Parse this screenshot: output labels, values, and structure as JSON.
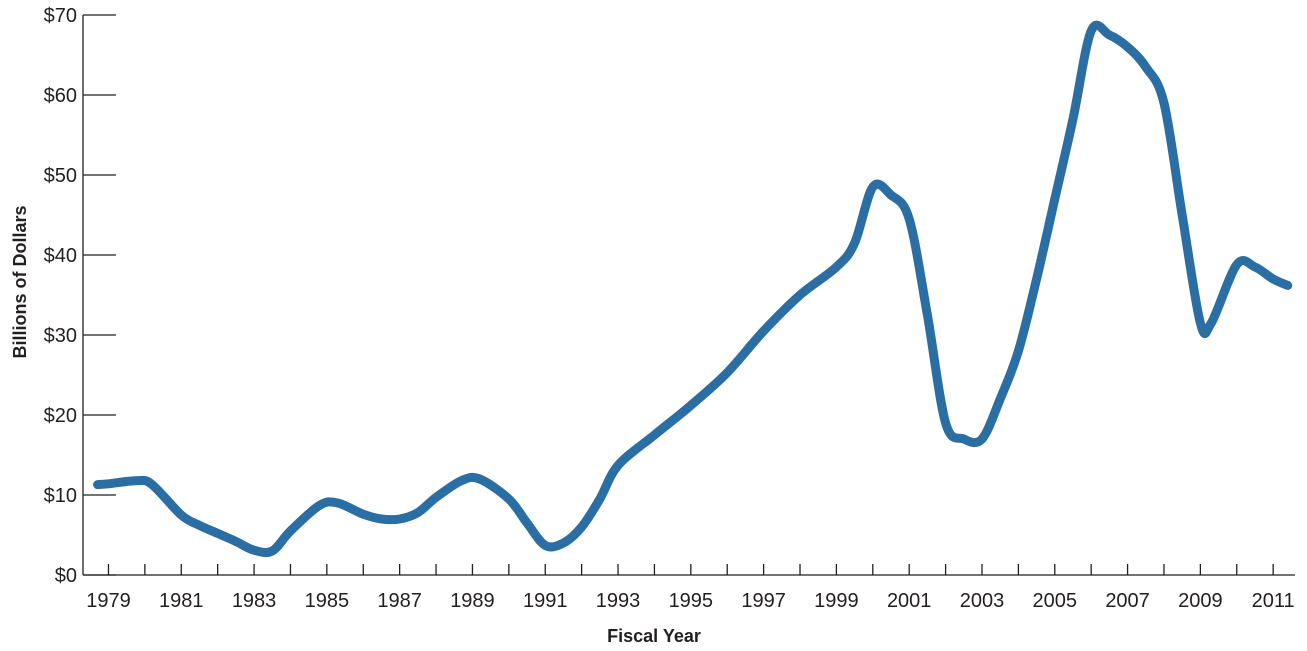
{
  "chart_data": {
    "type": "line",
    "title": "",
    "xlabel": "Fiscal Year",
    "ylabel": "Billions of Dollars",
    "xlim": [
      1978.3,
      2011.6
    ],
    "ylim": [
      0,
      70
    ],
    "y_ticks": [
      0,
      10,
      20,
      30,
      40,
      50,
      60,
      70
    ],
    "y_tick_labels": [
      "$0",
      "$10",
      "$20",
      "$30",
      "$40",
      "$50",
      "$60",
      "$70"
    ],
    "x_ticks": [
      1979,
      1981,
      1983,
      1985,
      1987,
      1989,
      1991,
      1993,
      1995,
      1997,
      1999,
      2001,
      2003,
      2005,
      2007,
      2009,
      2011
    ],
    "x_tick_labels": [
      "1979",
      "1981",
      "1983",
      "1985",
      "1987",
      "1989",
      "1991",
      "1993",
      "1995",
      "1997",
      "1999",
      "2001",
      "2003",
      "2005",
      "2007",
      "2009",
      "2011"
    ],
    "grid": false,
    "legend": "none",
    "line_color": "#2b6ea3",
    "series": [
      {
        "x": [
          1978.7,
          1979,
          1979.8,
          1980.2,
          1981,
          1981.5,
          1982,
          1982.5,
          1983,
          1983.5,
          1984,
          1984.8,
          1985.3,
          1986,
          1986.5,
          1987,
          1987.5,
          1988,
          1988.7,
          1989.2,
          1990,
          1990.5,
          1991,
          1991.5,
          1992,
          1992.5,
          1993,
          1994,
          1995,
          1996,
          1997,
          1998,
          1999,
          1999.5,
          2000,
          2000.5,
          2001,
          2001.5,
          2002,
          2002.5,
          2003,
          2003.5,
          2004,
          2004.5,
          2005,
          2005.5,
          2006,
          2006.5,
          2007,
          2007.5,
          2008,
          2008.5,
          2009,
          2009.3,
          2010,
          2010.5,
          2011,
          2011.4
        ],
        "y": [
          11.3,
          11.4,
          11.8,
          11.3,
          7.5,
          6.2,
          5.2,
          4.2,
          3.1,
          3.0,
          5.5,
          8.7,
          9.0,
          7.6,
          7.0,
          7.0,
          7.8,
          9.7,
          11.8,
          12.0,
          9.5,
          6.5,
          3.7,
          4.0,
          6.0,
          9.5,
          13.7,
          17.5,
          21.2,
          25.3,
          30.5,
          35.0,
          38.5,
          41.5,
          48.5,
          47.5,
          44.5,
          32.5,
          19.0,
          17.0,
          17.0,
          22.0,
          28.0,
          37.0,
          47.0,
          57.0,
          68.0,
          67.5,
          66.0,
          63.5,
          59.0,
          45.0,
          31.5,
          31.5,
          38.8,
          38.5,
          37.0,
          36.2
        ]
      }
    ]
  }
}
